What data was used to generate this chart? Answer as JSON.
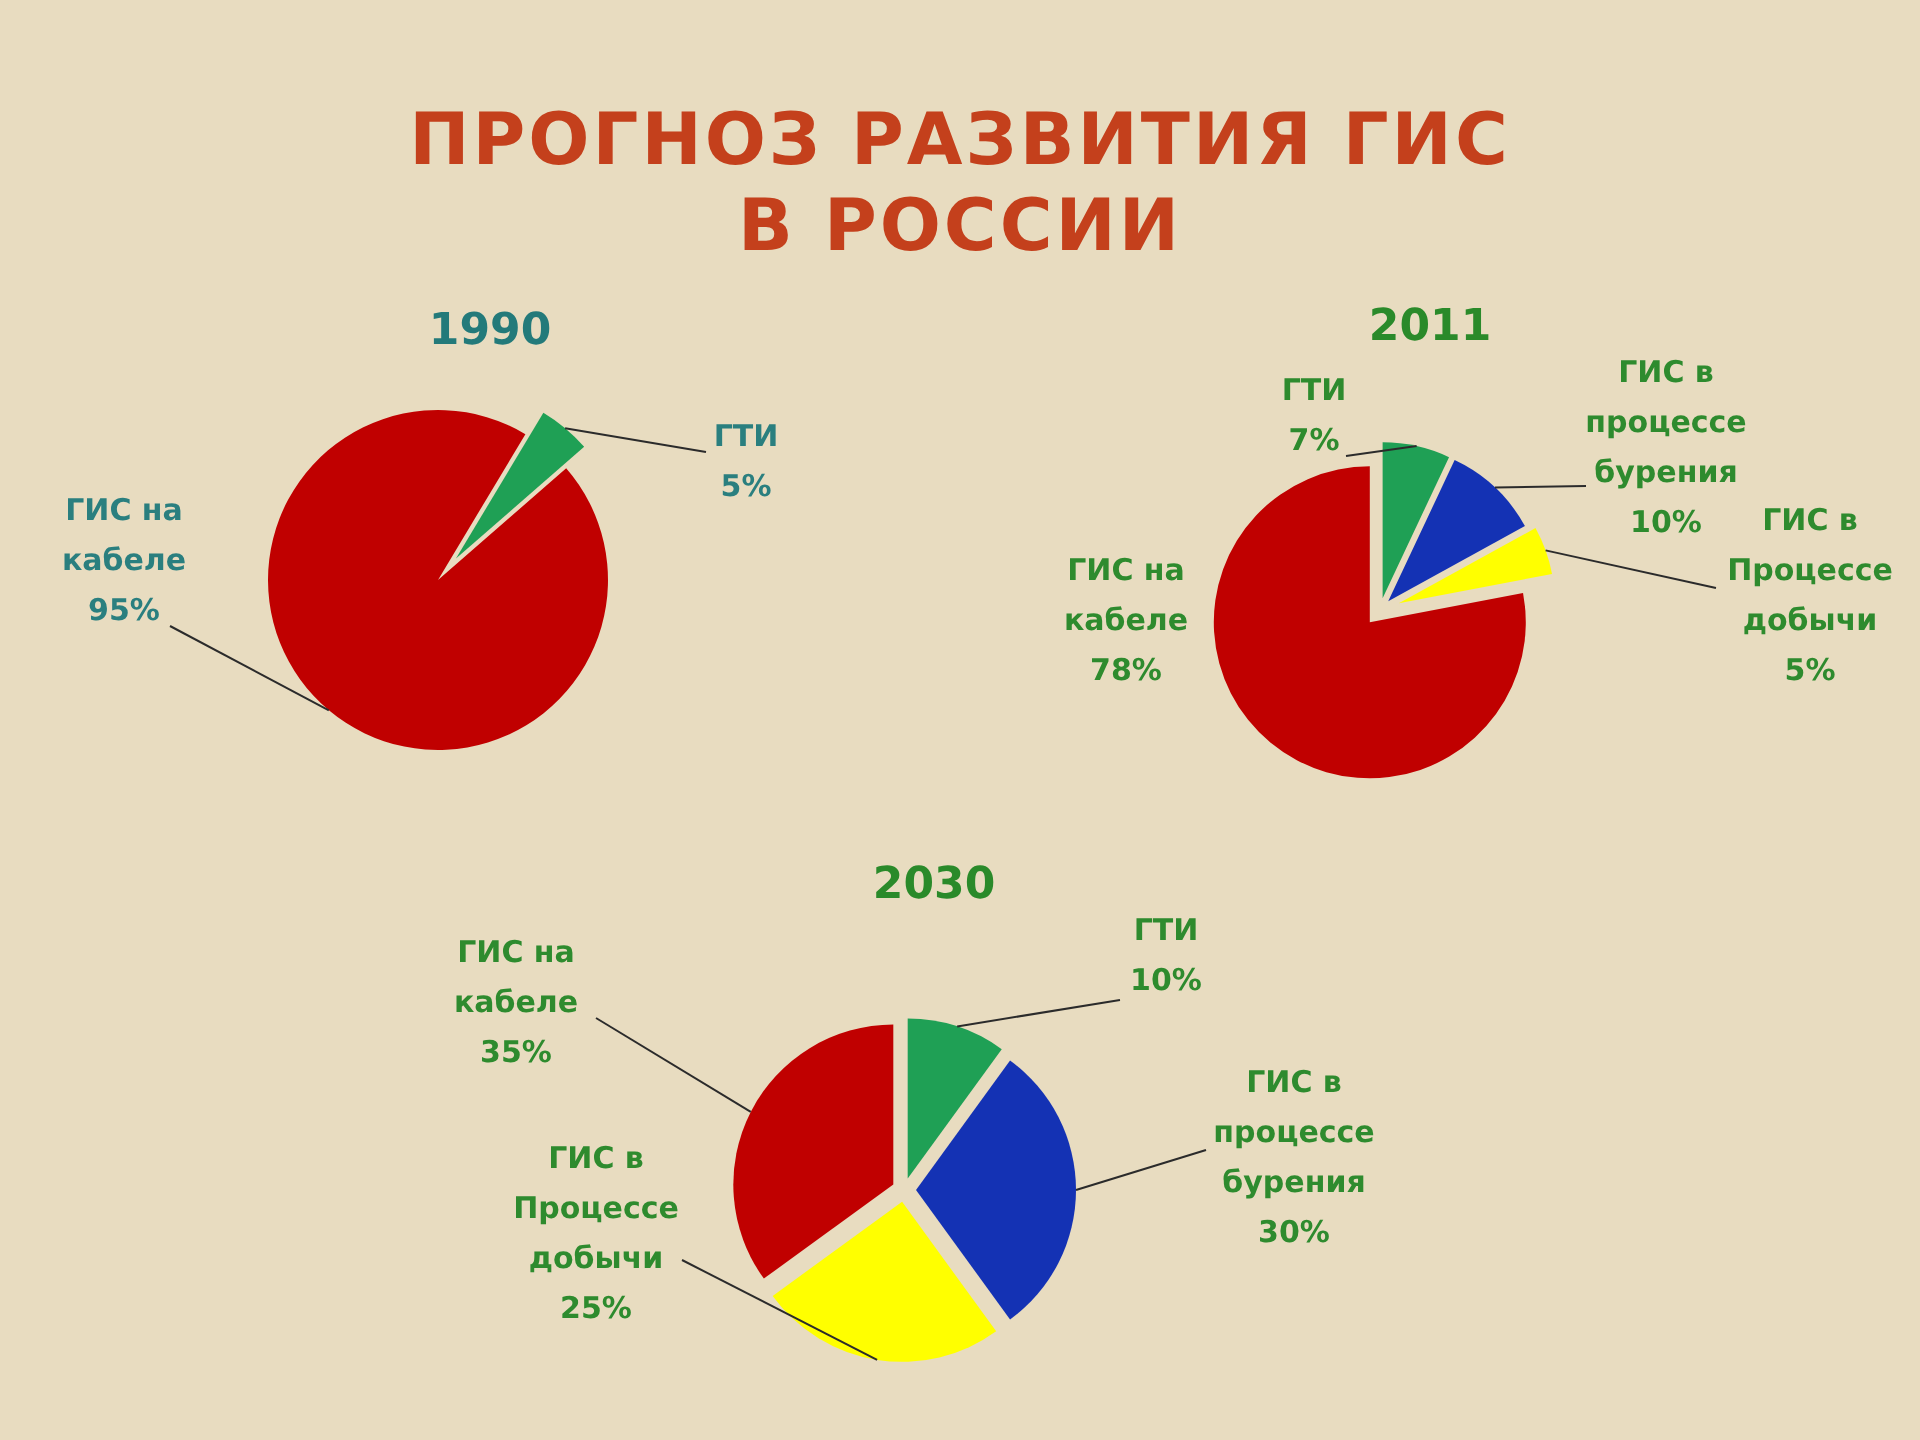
{
  "chart_data": [
    {
      "type": "other",
      "title": "ПРОГНОЗ РАЗВИТИЯ ГИС В РОССИИ"
    },
    {
      "type": "pie",
      "title": "1990",
      "categories": [
        "ГТИ",
        "ГИС на кабеле"
      ],
      "values": [
        5,
        95
      ],
      "colors": [
        "#1fa055",
        "#c00000"
      ],
      "value_labels": [
        "5%",
        "95%"
      ]
    },
    {
      "type": "pie",
      "title": "2011",
      "categories": [
        "ГТИ",
        "ГИС в процессе бурения",
        "ГИС в Процессе добычи",
        "ГИС на кабеле"
      ],
      "values": [
        7,
        10,
        5,
        78
      ],
      "colors": [
        "#1fa055",
        "#1432b4",
        "#ffff00",
        "#c00000"
      ],
      "value_labels": [
        "7%",
        "10%",
        "5%",
        "78%"
      ]
    },
    {
      "type": "pie",
      "title": "2030",
      "categories": [
        "ГТИ",
        "ГИС в процессе бурения",
        "ГИС в Процессе добычи",
        "ГИС на кабеле"
      ],
      "values": [
        10,
        30,
        25,
        35
      ],
      "colors": [
        "#1fa055",
        "#1432b4",
        "#ffff00",
        "#c00000"
      ],
      "value_labels": [
        "10%",
        "30%",
        "25%",
        "35%"
      ]
    }
  ]
}
